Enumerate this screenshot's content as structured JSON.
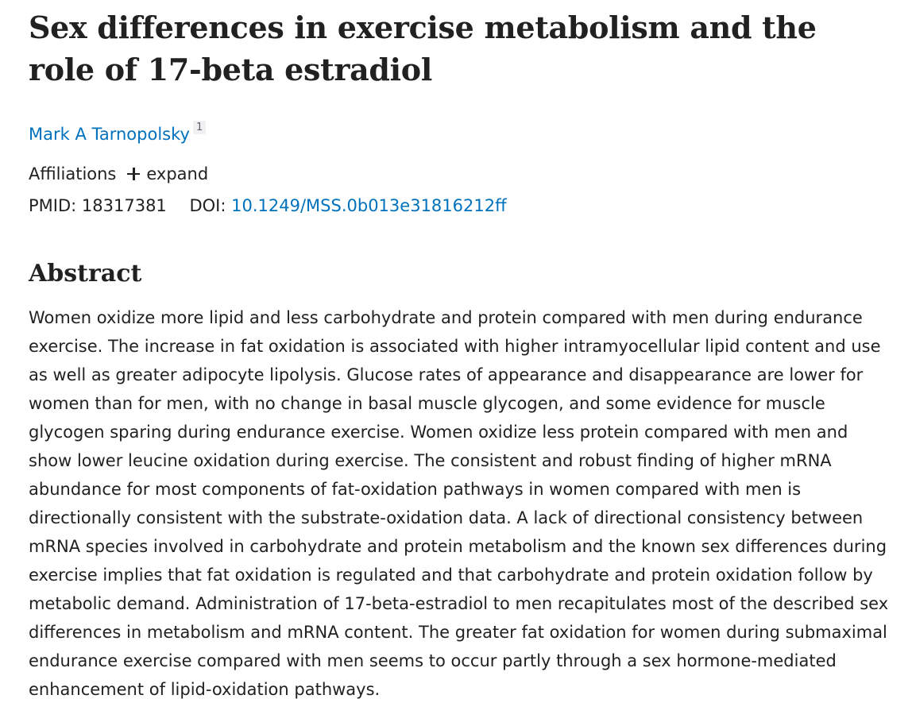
{
  "article": {
    "title": "Sex differences in exercise metabolism and the role of 17-beta estradiol",
    "authors": [
      {
        "name": "Mark A Tarnopolsky",
        "affiliation_ref": "1"
      }
    ],
    "affiliations": {
      "label": "Affiliations",
      "expand_label": "expand"
    },
    "identifiers": {
      "pmid_label": "PMID:",
      "pmid": "18317381",
      "doi_label": "DOI:",
      "doi": "10.1249/MSS.0b013e31816212ff"
    },
    "abstract": {
      "heading": "Abstract",
      "text": "Women oxidize more lipid and less carbohydrate and protein compared with men during endurance exercise. The increase in fat oxidation is associated with higher intramyocellular lipid content and use as well as greater adipocyte lipolysis. Glucose rates of appearance and disappearance are lower for women than for men, with no change in basal muscle glycogen, and some evidence for muscle glycogen sparing during endurance exercise. Women oxidize less protein compared with men and show lower leucine oxidation during exercise. The consistent and robust finding of higher mRNA abundance for most components of fat-oxidation pathways in women compared with men is directionally consistent with the substrate-oxidation data. A lack of directional consistency between mRNA species involved in carbohydrate and protein metabolism and the known sex differences during exercise implies that fat oxidation is regulated and that carbohydrate and protein oxidation follow by metabolic demand. Administration of 17-beta-estradiol to men recapitulates most of the described sex differences in metabolism and mRNA content. The greater fat oxidation for women during submaximal endurance exercise compared with men seems to occur partly through a sex hormone-mediated enhancement of lipid-oxidation pathways."
    }
  },
  "icons": {
    "expand": "plus-icon"
  },
  "colors": {
    "link": "#0071bc",
    "text": "#212121"
  }
}
